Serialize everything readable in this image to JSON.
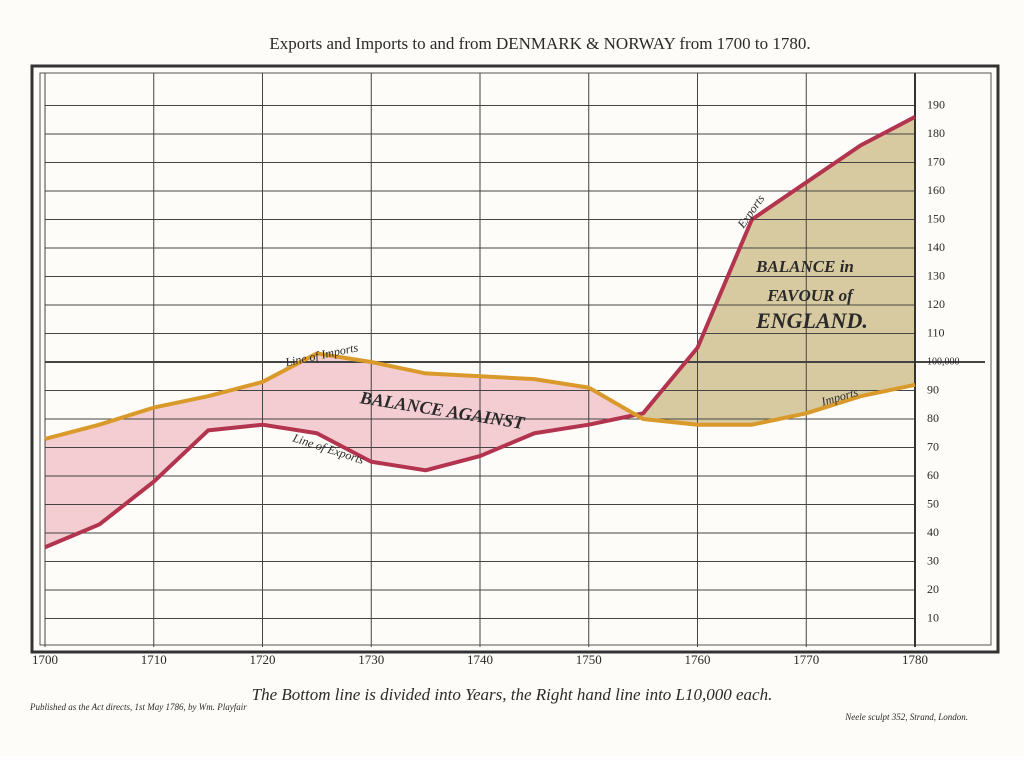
{
  "chart_data": {
    "type": "line",
    "title": "Exports and Imports to and from DENMARK & NORWAY from 1700 to 1780.",
    "x": [
      1700,
      1705,
      1710,
      1715,
      1720,
      1725,
      1730,
      1735,
      1740,
      1745,
      1750,
      1755,
      1760,
      1765,
      1770,
      1775,
      1780
    ],
    "series": [
      {
        "name": "Exports",
        "color": "#b3344f",
        "values": [
          35,
          43,
          58,
          76,
          78,
          75,
          65,
          62,
          67,
          75,
          78,
          82,
          105,
          150,
          163,
          176,
          186
        ]
      },
      {
        "name": "Imports",
        "color": "#d99a2b",
        "values": [
          73,
          78,
          84,
          88,
          93,
          103,
          100,
          96,
          95,
          94,
          91,
          80,
          78,
          78,
          82,
          88,
          92
        ]
      }
    ],
    "balance_colors": {
      "against": "#f3cdd2",
      "favour": "#d8caa0"
    },
    "xlim": [
      1700,
      1780
    ],
    "xticks": [
      1700,
      1710,
      1720,
      1730,
      1740,
      1750,
      1760,
      1770,
      1780
    ],
    "ylim": [
      0,
      200
    ],
    "yticks": [
      10,
      20,
      30,
      40,
      50,
      60,
      70,
      80,
      90,
      {
        "value": 100,
        "label": "100,000"
      },
      110,
      120,
      130,
      140,
      150,
      160,
      170,
      180,
      190
    ],
    "grid": true,
    "annotations": [
      "Line of Imports",
      "Line of Exports",
      "BALANCE AGAINST",
      "BALANCE in",
      "FAVOUR of",
      "ENGLAND."
    ],
    "note": "The Bottom line is divided into Years, the Right hand line into L10,000 each.",
    "credit_left": "Published as the Act directs, 1st May 1786, by Wm. Playfair",
    "credit_right": "Neele sculpt 352, Strand, London."
  }
}
